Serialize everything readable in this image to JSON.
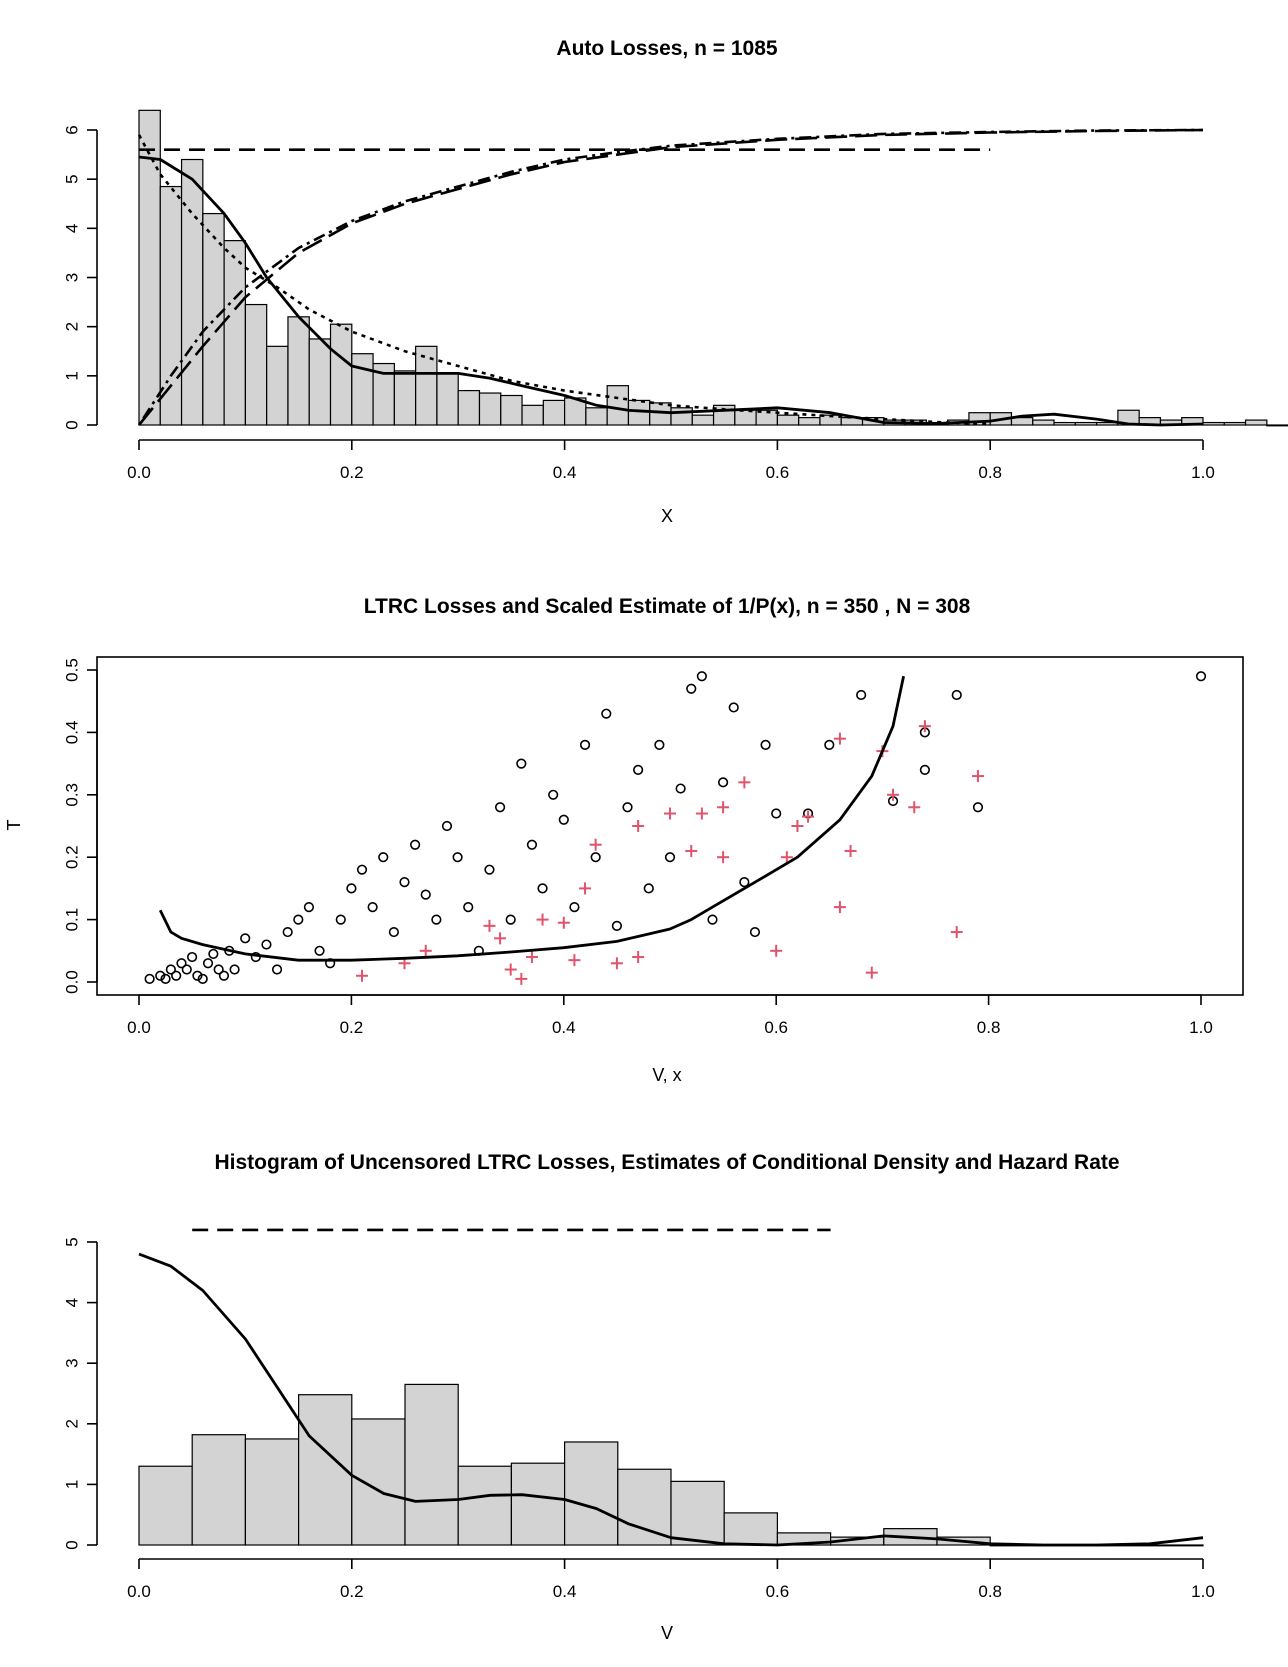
{
  "chart_data": [
    {
      "type": "bar",
      "title": "Auto Losses,  n = 1085",
      "xlabel": "X",
      "ylabel": "",
      "xlim": [
        0,
        1
      ],
      "ylim": [
        0,
        6
      ],
      "xticks": [
        "0.0",
        "0.2",
        "0.4",
        "0.6",
        "0.8",
        "1.0"
      ],
      "yticks": [
        "0",
        "1",
        "2",
        "3",
        "4",
        "5",
        "6"
      ],
      "histogram": {
        "bin_width": 0.02,
        "bin_start": 0.0,
        "values": [
          6.4,
          4.85,
          5.4,
          4.3,
          3.75,
          2.45,
          1.6,
          2.2,
          1.75,
          2.05,
          1.45,
          1.25,
          1.1,
          1.6,
          1.05,
          0.7,
          0.65,
          0.6,
          0.4,
          0.5,
          0.55,
          0.35,
          0.8,
          0.5,
          0.45,
          0.35,
          0.2,
          0.4,
          0.3,
          0.3,
          0.2,
          0.15,
          0.2,
          0.15,
          0.15,
          0.1,
          0.1,
          0.05,
          0.1,
          0.25,
          0.25,
          0.15,
          0.1,
          0.05,
          0.05,
          0.05,
          0.3,
          0.15,
          0.1,
          0.15,
          0.05,
          0.05,
          0.1,
          0.0,
          0.0,
          0.0,
          0.0,
          0.0,
          0.0,
          0.0,
          0.0,
          0.0,
          0.0,
          0.0,
          0.0,
          0.0,
          0.0,
          0.0,
          0.0,
          0.0,
          0.0,
          0.0,
          0.0,
          0.0,
          0.0,
          0.0,
          0.0,
          0.0,
          0.0,
          0.0,
          0.0,
          0.0,
          0.0,
          0.0,
          0.0,
          0.0,
          0.0,
          0.0,
          0.0,
          0.0,
          0.0,
          0.0,
          0.0,
          0.0,
          0.0,
          0.0,
          0.0,
          0.0,
          0.0,
          0.0
        ]
      },
      "series": [
        {
          "style": "solid",
          "x": [
            0,
            0.02,
            0.05,
            0.08,
            0.1,
            0.12,
            0.15,
            0.18,
            0.2,
            0.23,
            0.26,
            0.3,
            0.33,
            0.36,
            0.4,
            0.43,
            0.46,
            0.5,
            0.55,
            0.6,
            0.65,
            0.7,
            0.75,
            0.8,
            0.83,
            0.86,
            0.9,
            0.93,
            0.96,
            1.0
          ],
          "y": [
            5.45,
            5.4,
            5.0,
            4.3,
            3.7,
            3.0,
            2.2,
            1.55,
            1.2,
            1.05,
            1.05,
            1.05,
            0.95,
            0.8,
            0.6,
            0.4,
            0.3,
            0.25,
            0.3,
            0.35,
            0.25,
            0.05,
            0.03,
            0.08,
            0.18,
            0.22,
            0.12,
            0.02,
            0.0,
            0.02
          ]
        },
        {
          "style": "dotted",
          "x": [
            0,
            0.02,
            0.05,
            0.08,
            0.1,
            0.13,
            0.16,
            0.2,
            0.25,
            0.3,
            0.35,
            0.4,
            0.45,
            0.5,
            0.55,
            0.6,
            0.65,
            0.7,
            0.75,
            0.8
          ],
          "y": [
            5.9,
            5.1,
            4.3,
            3.6,
            3.2,
            2.8,
            2.35,
            1.9,
            1.5,
            1.2,
            0.9,
            0.7,
            0.55,
            0.4,
            0.32,
            0.25,
            0.18,
            0.12,
            0.06,
            0.02
          ]
        },
        {
          "style": "dashed",
          "x": [
            0,
            0.8
          ],
          "y": [
            5.6,
            5.6
          ]
        },
        {
          "style": "longdash",
          "x": [
            0,
            0.03,
            0.06,
            0.1,
            0.15,
            0.2,
            0.25,
            0.3,
            0.35,
            0.4,
            0.45,
            0.5,
            0.6,
            0.7,
            0.8,
            0.9,
            1.0
          ],
          "y": [
            0,
            0.8,
            1.6,
            2.6,
            3.5,
            4.1,
            4.5,
            4.8,
            5.1,
            5.35,
            5.5,
            5.65,
            5.8,
            5.9,
            5.95,
            5.98,
            6.0
          ]
        },
        {
          "style": "dotdash",
          "x": [
            0,
            0.03,
            0.06,
            0.1,
            0.15,
            0.2,
            0.25,
            0.3,
            0.35,
            0.4,
            0.45,
            0.5,
            0.6,
            0.7,
            0.8,
            0.9,
            1.0
          ],
          "y": [
            0,
            1.0,
            1.9,
            2.8,
            3.6,
            4.15,
            4.55,
            4.85,
            5.15,
            5.4,
            5.55,
            5.68,
            5.82,
            5.92,
            5.96,
            5.99,
            6.0
          ]
        }
      ]
    },
    {
      "type": "scatter",
      "title": "LTRC Losses and Scaled Estimate of 1/P(x),  n = 350 , N = 308",
      "xlabel": "V, x",
      "ylabel": "T",
      "xlim": [
        0,
        1
      ],
      "ylim": [
        0,
        0.5
      ],
      "xticks": [
        "0.0",
        "0.2",
        "0.4",
        "0.6",
        "0.8",
        "1.0"
      ],
      "yticks": [
        "0.0",
        "0.1",
        "0.2",
        "0.3",
        "0.4",
        "0.5"
      ],
      "censored_color": "#DF536B",
      "uncensored_points": [
        [
          0.01,
          0.005
        ],
        [
          0.02,
          0.01
        ],
        [
          0.025,
          0.005
        ],
        [
          0.03,
          0.02
        ],
        [
          0.035,
          0.01
        ],
        [
          0.04,
          0.03
        ],
        [
          0.045,
          0.02
        ],
        [
          0.05,
          0.04
        ],
        [
          0.055,
          0.01
        ],
        [
          0.06,
          0.005
        ],
        [
          0.065,
          0.03
        ],
        [
          0.07,
          0.045
        ],
        [
          0.075,
          0.02
        ],
        [
          0.08,
          0.01
        ],
        [
          0.085,
          0.05
        ],
        [
          0.09,
          0.02
        ],
        [
          0.1,
          0.07
        ],
        [
          0.11,
          0.04
        ],
        [
          0.12,
          0.06
        ],
        [
          0.13,
          0.02
        ],
        [
          0.14,
          0.08
        ],
        [
          0.15,
          0.1
        ],
        [
          0.16,
          0.12
        ],
        [
          0.17,
          0.05
        ],
        [
          0.18,
          0.03
        ],
        [
          0.19,
          0.1
        ],
        [
          0.2,
          0.15
        ],
        [
          0.21,
          0.18
        ],
        [
          0.22,
          0.12
        ],
        [
          0.23,
          0.2
        ],
        [
          0.24,
          0.08
        ],
        [
          0.25,
          0.16
        ],
        [
          0.26,
          0.22
        ],
        [
          0.27,
          0.14
        ],
        [
          0.28,
          0.1
        ],
        [
          0.29,
          0.25
        ],
        [
          0.3,
          0.2
        ],
        [
          0.31,
          0.12
        ],
        [
          0.32,
          0.05
        ],
        [
          0.33,
          0.18
        ],
        [
          0.34,
          0.28
        ],
        [
          0.35,
          0.1
        ],
        [
          0.36,
          0.35
        ],
        [
          0.37,
          0.22
        ],
        [
          0.38,
          0.15
        ],
        [
          0.39,
          0.3
        ],
        [
          0.4,
          0.26
        ],
        [
          0.41,
          0.12
        ],
        [
          0.42,
          0.38
        ],
        [
          0.43,
          0.2
        ],
        [
          0.44,
          0.43
        ],
        [
          0.45,
          0.09
        ],
        [
          0.46,
          0.28
        ],
        [
          0.47,
          0.34
        ],
        [
          0.48,
          0.15
        ],
        [
          0.49,
          0.38
        ],
        [
          0.5,
          0.2
        ],
        [
          0.51,
          0.31
        ],
        [
          0.52,
          0.47
        ],
        [
          0.53,
          0.49
        ],
        [
          0.54,
          0.1
        ],
        [
          0.55,
          0.32
        ],
        [
          0.56,
          0.44
        ],
        [
          0.57,
          0.16
        ],
        [
          0.58,
          0.08
        ],
        [
          0.59,
          0.38
        ],
        [
          0.6,
          0.27
        ],
        [
          0.63,
          0.27
        ],
        [
          0.65,
          0.38
        ],
        [
          0.68,
          0.46
        ],
        [
          0.71,
          0.29
        ],
        [
          0.74,
          0.34
        ],
        [
          0.74,
          0.4
        ],
        [
          0.77,
          0.46
        ],
        [
          0.79,
          0.28
        ],
        [
          1.0,
          0.49
        ]
      ],
      "censored_points": [
        [
          0.21,
          0.01
        ],
        [
          0.25,
          0.03
        ],
        [
          0.27,
          0.05
        ],
        [
          0.33,
          0.09
        ],
        [
          0.34,
          0.07
        ],
        [
          0.35,
          0.02
        ],
        [
          0.36,
          0.005
        ],
        [
          0.37,
          0.04
        ],
        [
          0.38,
          0.1
        ],
        [
          0.4,
          0.095
        ],
        [
          0.41,
          0.035
        ],
        [
          0.42,
          0.15
        ],
        [
          0.43,
          0.22
        ],
        [
          0.45,
          0.03
        ],
        [
          0.47,
          0.04
        ],
        [
          0.47,
          0.25
        ],
        [
          0.5,
          0.27
        ],
        [
          0.52,
          0.21
        ],
        [
          0.53,
          0.27
        ],
        [
          0.55,
          0.28
        ],
        [
          0.55,
          0.2
        ],
        [
          0.57,
          0.32
        ],
        [
          0.6,
          0.05
        ],
        [
          0.61,
          0.2
        ],
        [
          0.62,
          0.25
        ],
        [
          0.63,
          0.265
        ],
        [
          0.66,
          0.39
        ],
        [
          0.66,
          0.12
        ],
        [
          0.67,
          0.21
        ],
        [
          0.69,
          0.015
        ],
        [
          0.7,
          0.37
        ],
        [
          0.71,
          0.3
        ],
        [
          0.73,
          0.28
        ],
        [
          0.74,
          0.41
        ],
        [
          0.77,
          0.08
        ],
        [
          0.79,
          0.33
        ]
      ],
      "series": [
        {
          "name": "",
          "style": "solid",
          "x": [
            0.02,
            0.03,
            0.04,
            0.06,
            0.1,
            0.15,
            0.2,
            0.25,
            0.3,
            0.35,
            0.4,
            0.45,
            0.5,
            0.52,
            0.54,
            0.58,
            0.62,
            0.66,
            0.69,
            0.71,
            0.72
          ],
          "y": [
            0.115,
            0.08,
            0.07,
            0.06,
            0.045,
            0.035,
            0.035,
            0.038,
            0.042,
            0.048,
            0.055,
            0.065,
            0.085,
            0.1,
            0.12,
            0.16,
            0.2,
            0.26,
            0.33,
            0.41,
            0.49
          ]
        }
      ]
    },
    {
      "type": "bar",
      "title": "Histogram of Uncensored LTRC Losses, Estimates of Conditional Density and Hazard Rate",
      "xlabel": "V",
      "ylabel": "",
      "xlim": [
        0,
        1
      ],
      "ylim": [
        0,
        5
      ],
      "xticks": [
        "0.0",
        "0.2",
        "0.4",
        "0.6",
        "0.8",
        "1.0"
      ],
      "yticks": [
        "0",
        "1",
        "2",
        "3",
        "4",
        "5"
      ],
      "histogram": {
        "bin_width": 0.05,
        "bin_start": 0.0,
        "values": [
          1.3,
          1.82,
          1.75,
          2.48,
          2.08,
          2.65,
          1.3,
          1.35,
          1.7,
          1.25,
          1.05,
          0.53,
          0.2,
          0.13,
          0.27,
          0.13,
          0.0,
          0.0,
          0.0,
          0.0
        ]
      },
      "series": [
        {
          "style": "solid",
          "x": [
            0,
            0.03,
            0.06,
            0.1,
            0.13,
            0.16,
            0.2,
            0.23,
            0.26,
            0.3,
            0.33,
            0.36,
            0.4,
            0.43,
            0.46,
            0.5,
            0.55,
            0.6,
            0.65,
            0.7,
            0.75,
            0.8,
            0.85,
            0.9,
            0.95,
            1.0
          ],
          "y": [
            4.8,
            4.6,
            4.2,
            3.4,
            2.6,
            1.8,
            1.15,
            0.85,
            0.72,
            0.75,
            0.82,
            0.83,
            0.75,
            0.6,
            0.35,
            0.12,
            0.02,
            0.0,
            0.05,
            0.15,
            0.1,
            0.02,
            0.0,
            0.0,
            0.02,
            0.12
          ]
        },
        {
          "style": "dashed",
          "x": [
            0.05,
            0.65
          ],
          "y": [
            5.2,
            5.2
          ]
        }
      ]
    }
  ]
}
